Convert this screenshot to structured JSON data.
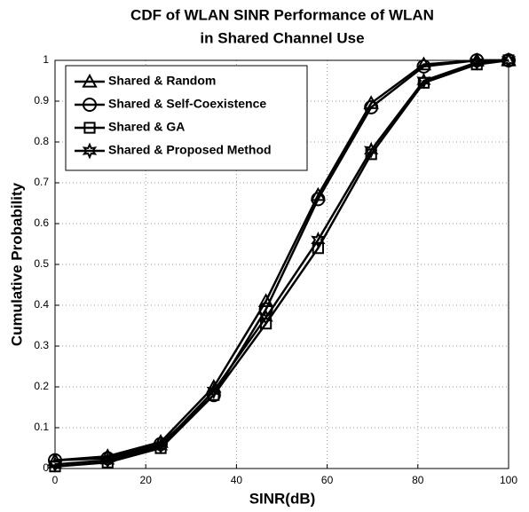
{
  "chart_data": {
    "type": "line",
    "title": [
      "CDF of WLAN SINR Performance of WLAN",
      "in Shared Channel Use"
    ],
    "xlabel": "SINR(dB)",
    "ylabel": "Cumulative Probability",
    "x": [
      0,
      11.6,
      23.3,
      35,
      46.5,
      58,
      69.7,
      81.3,
      93,
      100
    ],
    "series": [
      {
        "name": "Shared & Random",
        "color": "#000000",
        "marker": "triangle",
        "values": [
          0.02,
          0.03,
          0.065,
          0.2,
          0.41,
          0.67,
          0.895,
          0.99,
          1.0,
          1.0
        ]
      },
      {
        "name": "Shared & Self-Coexistence",
        "color": "#000000",
        "marker": "circle",
        "values": [
          0.02,
          0.025,
          0.06,
          0.18,
          0.39,
          0.66,
          0.885,
          0.985,
          1.0,
          1.0
        ]
      },
      {
        "name": "Shared & GA",
        "color": "#000000",
        "marker": "square",
        "values": [
          0.005,
          0.015,
          0.05,
          0.18,
          0.355,
          0.54,
          0.77,
          0.945,
          0.99,
          1.0
        ]
      },
      {
        "name": "Shared & Proposed Method",
        "color": "#000000",
        "marker": "star",
        "values": [
          0.01,
          0.02,
          0.055,
          0.19,
          0.37,
          0.56,
          0.78,
          0.95,
          0.995,
          1.0
        ]
      }
    ],
    "xlim": [
      0,
      100
    ],
    "xticks": [
      0,
      20,
      40,
      60,
      80,
      100
    ],
    "ylim": [
      0,
      1
    ],
    "yticks": [
      0,
      0.1,
      0.2,
      0.3,
      0.4,
      0.5,
      0.6,
      0.7,
      0.8,
      0.9,
      1
    ],
    "grid": true,
    "legend": "upper left"
  }
}
